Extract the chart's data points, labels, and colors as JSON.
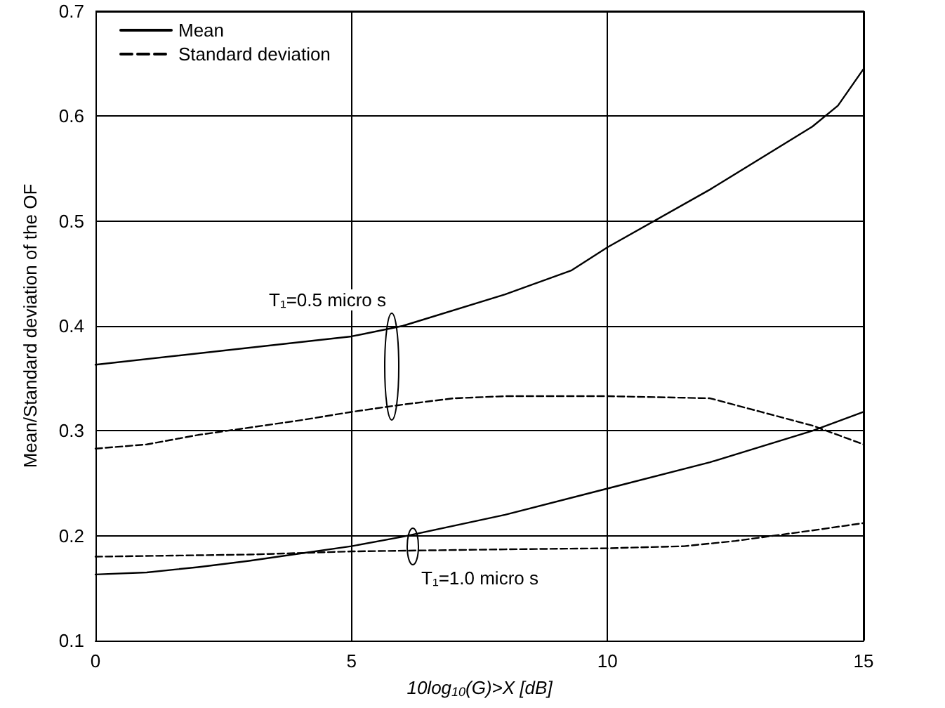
{
  "chart_data": {
    "type": "line",
    "xlabel": "10log$_{10}$(G)>X [dB]",
    "ylabel": "Mean/Standard deviation of the OF",
    "xlim": [
      0,
      15
    ],
    "xticks": [
      0,
      5,
      10,
      15
    ],
    "ylim": [
      0.1,
      0.7
    ],
    "yticks": [
      0.1,
      0.2,
      0.3,
      0.4,
      0.5,
      0.6,
      0.7
    ],
    "grid": true,
    "legend": "top left",
    "marker": "none",
    "series": [
      {
        "name": "Mean",
        "color": "#000000",
        "line_style": "solid",
        "x": [
          0,
          5,
          6,
          8,
          9.3,
          10,
          12,
          14,
          14.5,
          15
        ],
        "values": [
          0.363,
          0.39,
          0.4,
          0.43,
          0.453,
          0.475,
          0.53,
          0.59,
          0.61,
          0.645
        ]
      },
      {
        "name": "Standard deviation",
        "color": "#000000",
        "line_style": "dashed",
        "x": [
          0,
          1,
          2,
          4,
          5,
          6,
          7,
          8,
          10,
          12,
          13,
          14,
          15
        ],
        "values": [
          0.283,
          0.287,
          0.296,
          0.31,
          0.318,
          0.325,
          0.331,
          0.333,
          0.333,
          0.331,
          0.318,
          0.305,
          0.287
        ]
      },
      {
        "color": "#000000",
        "line_style": "solid",
        "x": [
          0,
          1,
          2,
          3,
          4,
          5,
          6,
          8,
          10,
          12,
          14,
          15
        ],
        "values": [
          0.163,
          0.165,
          0.17,
          0.176,
          0.183,
          0.19,
          0.199,
          0.22,
          0.245,
          0.27,
          0.3,
          0.318
        ]
      },
      {
        "color": "#000000",
        "line_style": "dashed",
        "x": [
          0,
          3,
          5,
          8,
          10,
          11.5,
          12.5,
          14,
          15
        ],
        "values": [
          0.18,
          0.182,
          0.185,
          0.187,
          0.188,
          0.19,
          0.195,
          0.205,
          0.212
        ]
      }
    ],
    "annotations": [
      "T₁=0.5 micro s",
      "T₁=1.0 micro s"
    ]
  }
}
